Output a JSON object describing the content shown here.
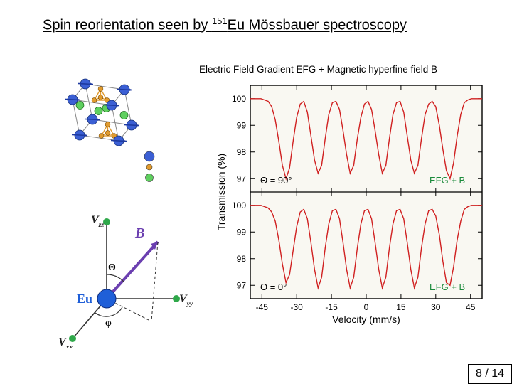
{
  "title": {
    "pre": "Spin reorientation seen by ",
    "sup": "151",
    "post": "Eu Mössbauer spectroscopy"
  },
  "subtitle": "Electric Field Gradient EFG + Magnetic hyperfine field B",
  "pager": "8 / 14",
  "crystal": {
    "atom_colors": {
      "large": "#3b5fd4",
      "mid": "#5fcf5f",
      "small": "#e19b2e"
    },
    "bond_color": "#e19b2e",
    "arrow_color": "#1e3aa0"
  },
  "axes_diagram": {
    "Vzz": "V",
    "Vzz_sub": "zz",
    "Vyy": "V",
    "Vyy_sub": "yy",
    "Vxx": "V",
    "Vxx_sub": "xx",
    "B": "B",
    "Eu": "Eu",
    "theta": "Θ",
    "phi": "φ",
    "colors": {
      "eu": "#1f5fd8",
      "tip": "#2fa84a",
      "B_arrow": "#6b3fb0",
      "axis": "#333333",
      "arc": "#333333"
    }
  },
  "moss": {
    "frame_color": "#000000",
    "spectrum_color": "#d02020",
    "background": "#f9f8f2",
    "efg_text_color": "#1a8a3a",
    "x_label": "Velocity (mm/s)",
    "y_label": "Transmission (%)",
    "x_ticks": [
      -45,
      -30,
      -15,
      0,
      15,
      30,
      45
    ],
    "y_ticks": [
      97,
      98,
      99,
      100
    ],
    "y_lim": [
      96.5,
      100.5
    ],
    "panels": [
      {
        "theta_label": "Θ = 90°",
        "efg_label": "EFG + B",
        "y": [
          100,
          100,
          100,
          100,
          99.95,
          99.9,
          99.7,
          99.2,
          98.4,
          97.5,
          97.0,
          97.4,
          98.4,
          99.3,
          99.8,
          99.9,
          99.5,
          98.6,
          97.7,
          97.2,
          97.5,
          98.5,
          99.4,
          99.85,
          99.9,
          99.6,
          98.8,
          97.9,
          97.2,
          97.5,
          98.5,
          99.3,
          99.8,
          99.9,
          99.6,
          98.8,
          97.9,
          97.2,
          97.5,
          98.5,
          99.4,
          99.85,
          99.9,
          99.5,
          98.6,
          97.7,
          97.2,
          97.5,
          98.5,
          99.4,
          99.8,
          99.9,
          99.7,
          99.0,
          98.1,
          97.3,
          97.0,
          97.6,
          98.6,
          99.4,
          99.85,
          99.95,
          100,
          100,
          100,
          100
        ]
      },
      {
        "theta_label": "Θ = 0°",
        "efg_label": "EFG + B",
        "y": [
          100,
          100,
          100,
          100,
          99.95,
          99.9,
          99.75,
          99.4,
          98.7,
          97.8,
          97.1,
          97.4,
          98.3,
          99.2,
          99.75,
          99.85,
          99.5,
          98.6,
          97.6,
          96.9,
          97.3,
          98.4,
          99.3,
          99.8,
          99.85,
          99.5,
          98.6,
          97.6,
          96.9,
          97.3,
          98.4,
          99.3,
          99.8,
          99.85,
          99.5,
          98.6,
          97.6,
          96.9,
          97.3,
          98.4,
          99.3,
          99.8,
          99.85,
          99.5,
          98.6,
          97.6,
          96.9,
          97.3,
          98.4,
          99.3,
          99.8,
          99.85,
          99.6,
          98.9,
          97.9,
          97.1,
          97.0,
          97.7,
          98.7,
          99.4,
          99.85,
          99.95,
          100,
          100,
          100,
          100
        ]
      }
    ]
  }
}
